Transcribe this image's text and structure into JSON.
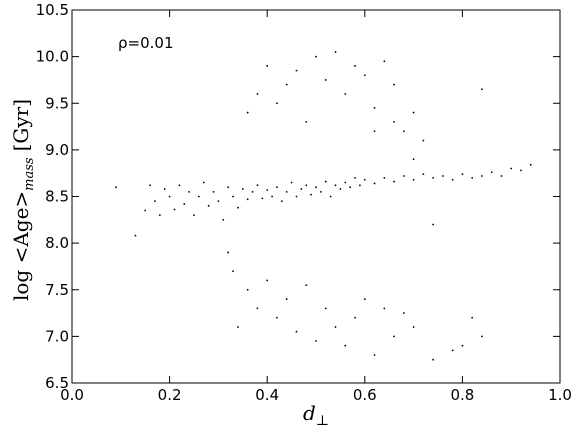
{
  "chart_data": {
    "type": "scatter",
    "xlabel_main": "d",
    "xlabel_sub": "⊥",
    "ylabel_main": "log <Age>",
    "ylabel_sub": "mass",
    "ylabel_unit": "[Gyr]",
    "annotation": "ρ=0.01",
    "xlim": [
      0.0,
      1.0
    ],
    "ylim": [
      6.5,
      10.5
    ],
    "xticks": [
      "0.0",
      "0.2",
      "0.4",
      "0.6",
      "0.8",
      "1.0"
    ],
    "yticks": [
      "6.5",
      "7.0",
      "7.5",
      "8.0",
      "8.5",
      "9.0",
      "9.5",
      "10.0",
      "10.5"
    ],
    "grid": false,
    "legend": "none",
    "marker_color": "#000000",
    "series": [
      {
        "points": [
          [
            0.09,
            8.6
          ],
          [
            0.13,
            8.08
          ],
          [
            0.15,
            8.35
          ],
          [
            0.16,
            8.62
          ],
          [
            0.17,
            8.45
          ],
          [
            0.18,
            8.3
          ],
          [
            0.19,
            8.58
          ],
          [
            0.2,
            8.5
          ],
          [
            0.21,
            8.36
          ],
          [
            0.22,
            8.62
          ],
          [
            0.23,
            8.42
          ],
          [
            0.24,
            8.55
          ],
          [
            0.25,
            8.3
          ],
          [
            0.26,
            8.5
          ],
          [
            0.27,
            8.65
          ],
          [
            0.28,
            8.4
          ],
          [
            0.29,
            8.55
          ],
          [
            0.3,
            8.45
          ],
          [
            0.31,
            8.25
          ],
          [
            0.32,
            8.6
          ],
          [
            0.33,
            8.5
          ],
          [
            0.34,
            8.38
          ],
          [
            0.35,
            8.58
          ],
          [
            0.36,
            8.47
          ],
          [
            0.37,
            8.55
          ],
          [
            0.38,
            8.62
          ],
          [
            0.39,
            8.48
          ],
          [
            0.4,
            8.57
          ],
          [
            0.41,
            8.5
          ],
          [
            0.42,
            8.6
          ],
          [
            0.43,
            8.45
          ],
          [
            0.44,
            8.55
          ],
          [
            0.45,
            8.65
          ],
          [
            0.46,
            8.5
          ],
          [
            0.47,
            8.58
          ],
          [
            0.48,
            8.62
          ],
          [
            0.49,
            8.52
          ],
          [
            0.5,
            8.6
          ],
          [
            0.51,
            8.55
          ],
          [
            0.52,
            8.66
          ],
          [
            0.53,
            8.5
          ],
          [
            0.54,
            8.62
          ],
          [
            0.55,
            8.58
          ],
          [
            0.56,
            8.65
          ],
          [
            0.57,
            8.6
          ],
          [
            0.58,
            8.7
          ],
          [
            0.59,
            8.62
          ],
          [
            0.6,
            8.68
          ],
          [
            0.62,
            8.64
          ],
          [
            0.64,
            8.7
          ],
          [
            0.66,
            8.66
          ],
          [
            0.68,
            8.72
          ],
          [
            0.7,
            8.68
          ],
          [
            0.72,
            8.74
          ],
          [
            0.74,
            8.7
          ],
          [
            0.76,
            8.72
          ],
          [
            0.78,
            8.68
          ],
          [
            0.8,
            8.74
          ],
          [
            0.82,
            8.7
          ],
          [
            0.84,
            8.72
          ],
          [
            0.86,
            8.76
          ],
          [
            0.88,
            8.72
          ],
          [
            0.9,
            8.8
          ],
          [
            0.92,
            8.78
          ],
          [
            0.94,
            8.84
          ],
          [
            0.32,
            7.9
          ],
          [
            0.33,
            7.7
          ],
          [
            0.34,
            7.1
          ],
          [
            0.36,
            7.5
          ],
          [
            0.38,
            7.3
          ],
          [
            0.4,
            7.6
          ],
          [
            0.42,
            7.2
          ],
          [
            0.44,
            7.4
          ],
          [
            0.46,
            7.05
          ],
          [
            0.48,
            7.55
          ],
          [
            0.5,
            6.95
          ],
          [
            0.52,
            7.3
          ],
          [
            0.54,
            7.1
          ],
          [
            0.56,
            6.9
          ],
          [
            0.58,
            7.2
          ],
          [
            0.6,
            7.4
          ],
          [
            0.62,
            6.8
          ],
          [
            0.64,
            7.3
          ],
          [
            0.66,
            7.0
          ],
          [
            0.68,
            7.25
          ],
          [
            0.7,
            7.1
          ],
          [
            0.74,
            6.75
          ],
          [
            0.78,
            6.85
          ],
          [
            0.8,
            6.9
          ],
          [
            0.82,
            7.2
          ],
          [
            0.84,
            7.0
          ],
          [
            0.36,
            9.4
          ],
          [
            0.38,
            9.6
          ],
          [
            0.4,
            9.9
          ],
          [
            0.42,
            9.5
          ],
          [
            0.44,
            9.7
          ],
          [
            0.46,
            9.85
          ],
          [
            0.48,
            9.3
          ],
          [
            0.5,
            10.0
          ],
          [
            0.52,
            9.75
          ],
          [
            0.54,
            10.05
          ],
          [
            0.56,
            9.6
          ],
          [
            0.58,
            9.9
          ],
          [
            0.6,
            9.8
          ],
          [
            0.62,
            9.45
          ],
          [
            0.64,
            9.95
          ],
          [
            0.66,
            9.7
          ],
          [
            0.68,
            9.2
          ],
          [
            0.7,
            9.4
          ],
          [
            0.72,
            9.1
          ],
          [
            0.84,
            9.65
          ],
          [
            0.62,
            9.2
          ],
          [
            0.66,
            9.3
          ],
          [
            0.7,
            8.9
          ],
          [
            0.74,
            8.2
          ]
        ]
      }
    ]
  }
}
